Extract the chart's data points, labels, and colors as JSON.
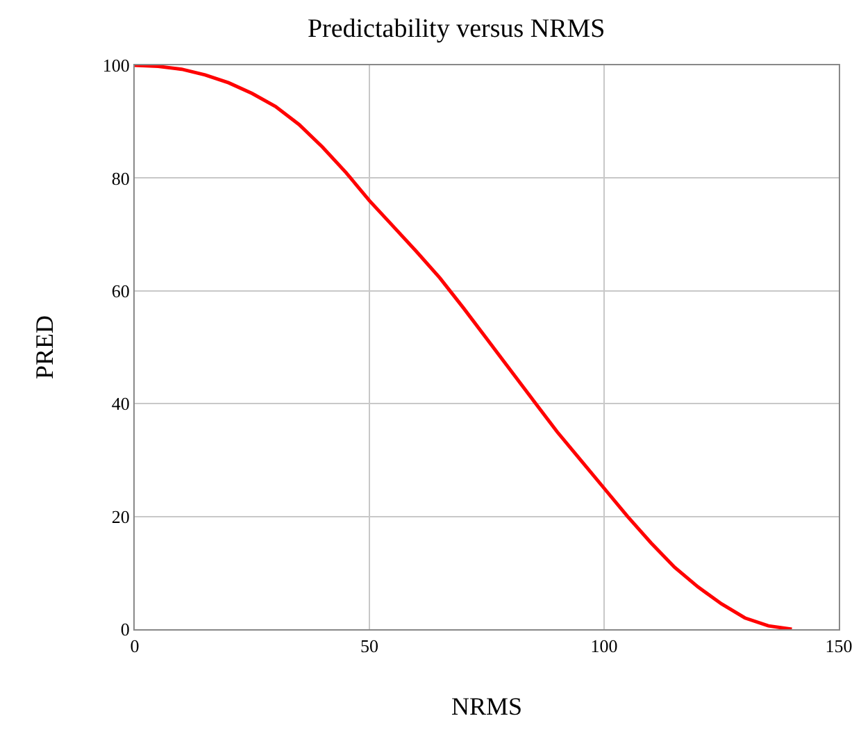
{
  "chart_data": {
    "type": "line",
    "title": "Predictability versus NRMS",
    "xlabel": "NRMS",
    "ylabel": "PRED",
    "x": [
      0,
      5,
      10,
      15,
      20,
      25,
      30,
      35,
      40,
      45,
      50,
      55,
      60,
      65,
      70,
      75,
      80,
      85,
      90,
      95,
      100,
      105,
      110,
      115,
      120,
      125,
      130,
      135,
      140
    ],
    "series": [
      {
        "color": "#ff0000",
        "values": [
          100,
          99.8,
          99.3,
          98.3,
          96.9,
          95,
          92.7,
          89.5,
          85.5,
          81,
          76,
          71.5,
          67,
          62.3,
          57,
          51.5,
          46,
          40.5,
          35,
          30,
          25,
          20,
          15.3,
          11,
          7.5,
          4.5,
          2,
          0.6,
          0
        ]
      }
    ],
    "xlim": [
      0,
      150
    ],
    "ylim": [
      0,
      100
    ],
    "xticks": [
      0,
      50,
      100,
      150
    ],
    "yticks": [
      0,
      20,
      40,
      60,
      80,
      100
    ],
    "grid": true,
    "marker": "none",
    "line_style": "solid"
  }
}
